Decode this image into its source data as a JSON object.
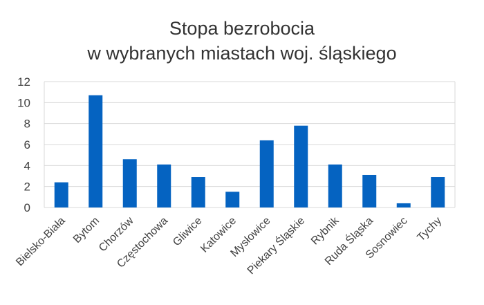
{
  "chart_data": {
    "type": "bar",
    "title": [
      "Stopa bezrobocia",
      "w wybranych miastach woj. śląskiego"
    ],
    "xlabel": "",
    "ylabel": "",
    "categories": [
      "Bielsko-Biała",
      "Bytom",
      "Chorzów",
      "Częstochowa",
      "Gliwice",
      "Katowice",
      "Mysłowice",
      "Piekary Śląskie",
      "Rybnik",
      "Ruda Śląska",
      "Sosnowiec",
      "Tychy"
    ],
    "values": [
      2.4,
      10.7,
      4.6,
      4.1,
      2.9,
      1.5,
      6.4,
      7.8,
      4.1,
      3.1,
      0.4,
      2.9
    ],
    "ylim": [
      0,
      12
    ],
    "yticks": [
      0,
      2,
      4,
      6,
      8,
      10,
      12
    ],
    "grid": true,
    "legend": "none",
    "bar_color": "#0563C1",
    "grid_color": "#D9D9D9"
  }
}
